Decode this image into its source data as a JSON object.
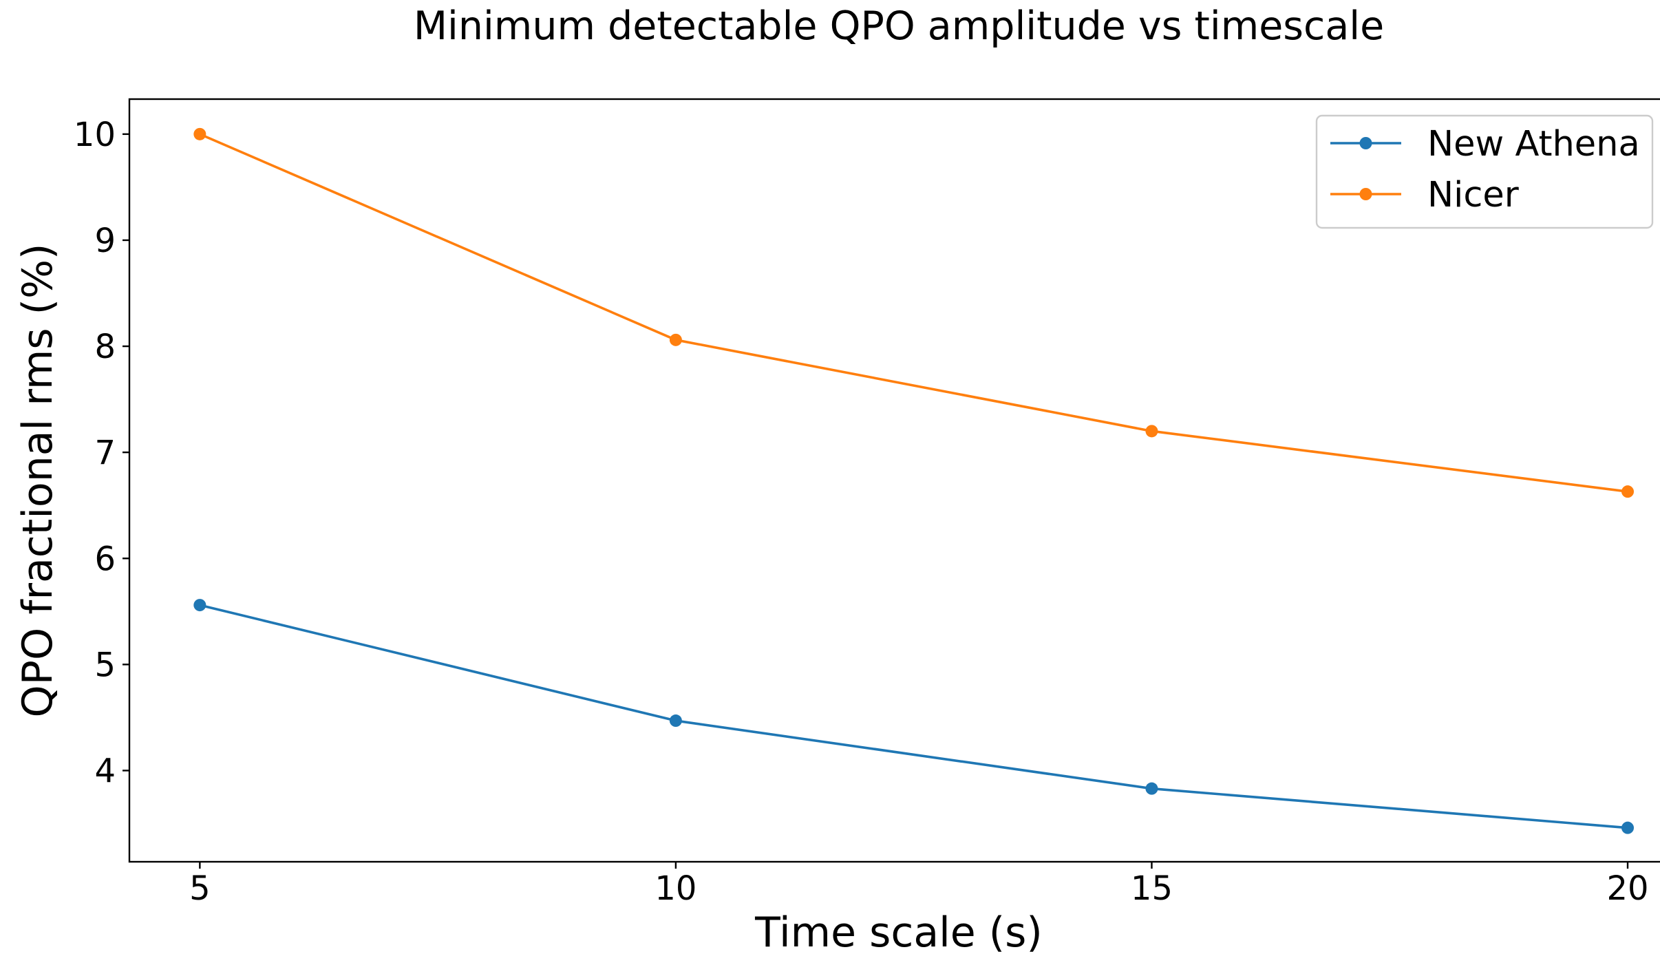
{
  "chart_data": {
    "type": "line",
    "title": "Minimum detectable QPO amplitude vs timescale",
    "xlabel": "Time scale (s)",
    "ylabel": "QPO fractional rms (%)",
    "x": [
      5,
      10,
      15,
      20
    ],
    "xticks": [
      5,
      10,
      15,
      20
    ],
    "xtick_labels": [
      "5",
      "10",
      "15",
      "20"
    ],
    "yticks": [
      4,
      5,
      6,
      7,
      8,
      9,
      10
    ],
    "ytick_labels": [
      "4",
      "5",
      "6",
      "7",
      "8",
      "9",
      "10"
    ],
    "xlim": [
      4.26,
      20.6
    ],
    "ylim": [
      3.14,
      10.33
    ],
    "grid": false,
    "legend_position": "top-right",
    "series": [
      {
        "name": "New Athena",
        "color": "#1f77b4",
        "marker": "circle",
        "values": [
          5.56,
          4.47,
          3.83,
          3.46
        ]
      },
      {
        "name": "Nicer",
        "color": "#ff7f0e",
        "marker": "circle",
        "values": [
          10.0,
          8.06,
          7.2,
          6.63
        ]
      }
    ]
  }
}
